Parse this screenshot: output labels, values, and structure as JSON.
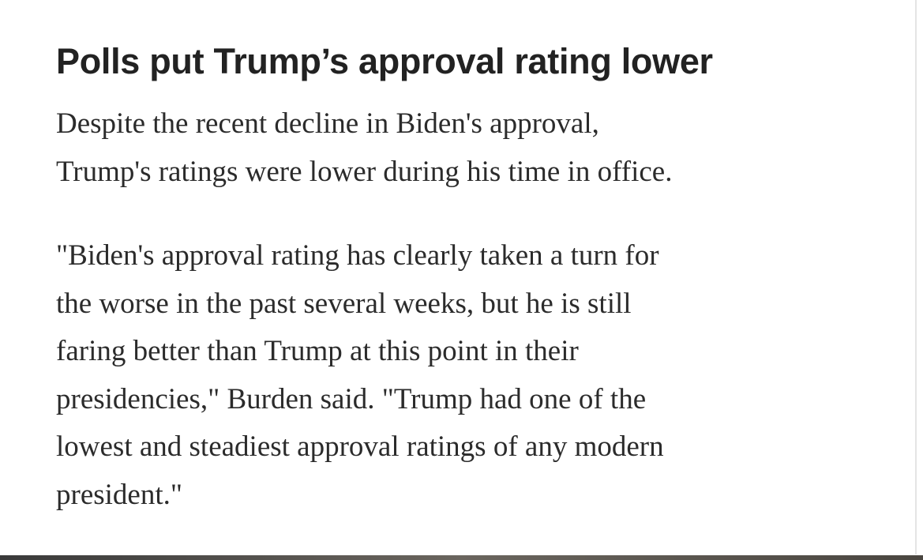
{
  "article": {
    "title": "Polls put Trump’s approval rating lower",
    "paragraphs": [
      {
        "lines": [
          "Despite the recent decline in Biden's approval,",
          "Trump's ratings were lower during his time in office."
        ]
      },
      {
        "lines": [
          "\"Biden's approval rating has clearly taken a turn for",
          "the worse in the past several weeks, but he is still",
          "faring better than Trump at this point in their",
          "presidencies,\" Burden said. \"Trump had one of the",
          "lowest and steadiest approval ratings of any modern",
          "president.\""
        ]
      }
    ]
  }
}
